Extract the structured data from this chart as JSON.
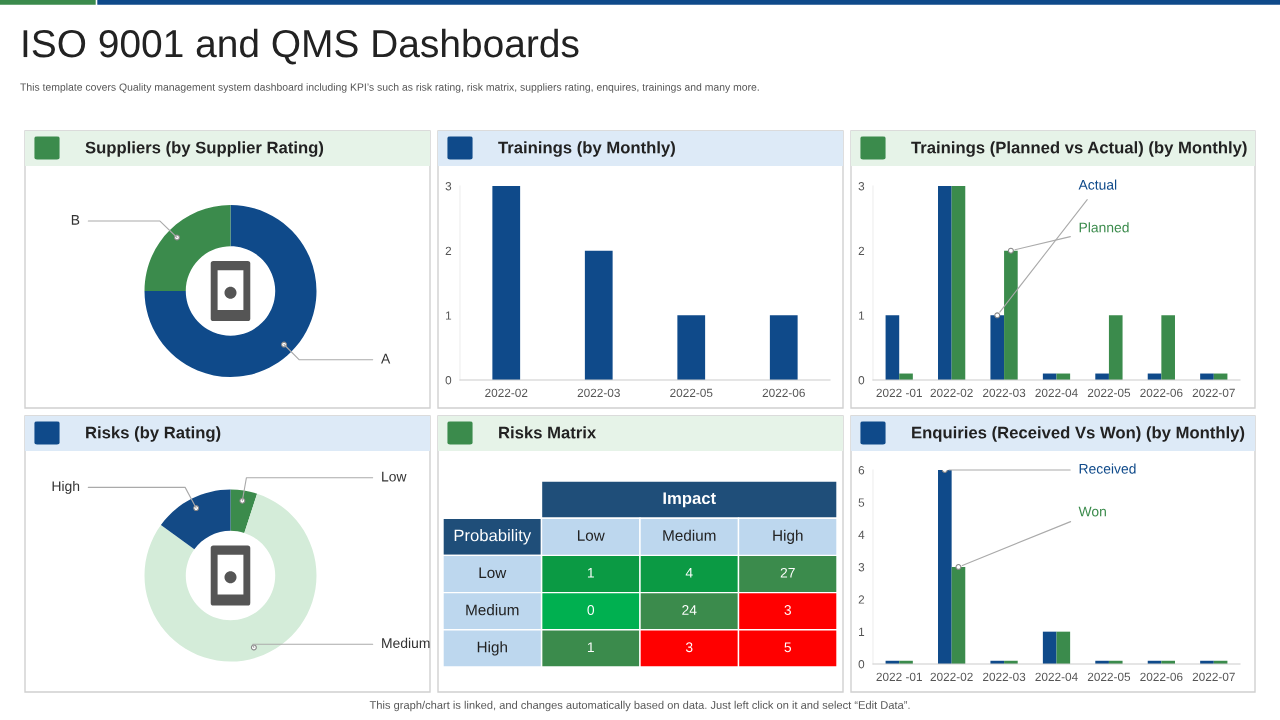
{
  "chart_data": [
    {
      "type": "other",
      "title": "ISO 9001 and QMS Dashboards",
      "subtitle": "This template covers Quality management system dashboard including KPI’s such as risk rating, risk matrix, suppliers rating, enquires, trainings and many more.",
      "annotations": [
        "This graph/chart is linked, and changes automatically based on data. Just left click on it and select “Edit Data”."
      ]
    },
    {
      "type": "donut",
      "title": "Suppliers (by Supplier Rating)",
      "categories": [
        "A",
        "B"
      ],
      "values": [
        75,
        25
      ],
      "colors": [
        "#0f4a8a",
        "#3b8b4c"
      ]
    },
    {
      "type": "bar",
      "title": "Trainings (by Monthly)",
      "categories": [
        "2022-02",
        "2022-03",
        "2022-05",
        "2022-06"
      ],
      "values": [
        3,
        2,
        1,
        1
      ],
      "color": "#0f4a8a",
      "ylim": [
        0,
        3
      ],
      "yticks": [
        0,
        1,
        2,
        3
      ]
    },
    {
      "type": "bar",
      "title": "Trainings (Planned vs Actual) (by Monthly)",
      "categories": [
        "2022 -01",
        "2022-02",
        "2022-03",
        "2022-04",
        "2022-05",
        "2022-06",
        "2022-07"
      ],
      "ylim": [
        0,
        3
      ],
      "yticks": [
        0,
        1,
        2,
        3
      ],
      "series": [
        {
          "name": "Actual",
          "color": "#0f4a8a",
          "values": [
            1,
            3,
            1,
            0.1,
            0.1,
            0.1,
            0.1
          ]
        },
        {
          "name": "Planned",
          "color": "#3b8b4c",
          "values": [
            0.1,
            3,
            2,
            0.1,
            1,
            1,
            0.1
          ]
        }
      ]
    },
    {
      "type": "donut",
      "title": "Risks (by Rating)",
      "categories": [
        "Low",
        "Medium",
        "High"
      ],
      "values": [
        5,
        80,
        15
      ],
      "colors": [
        "#3b8b4c",
        "#d4ecd9",
        "#134a86"
      ]
    },
    {
      "type": "heatmap",
      "title": "Risks Matrix",
      "xlabel": "Impact",
      "ylabel": "Probability",
      "categories": [
        "Low",
        "Medium",
        "High"
      ],
      "y_categories": [
        "Low",
        "Medium",
        "High"
      ],
      "cells": [
        [
          1,
          4,
          27
        ],
        [
          0,
          24,
          3
        ],
        [
          1,
          3,
          5
        ]
      ],
      "colors": [
        [
          "#0b9a44",
          "#0b9a44",
          "#3b8b4c"
        ],
        [
          "#00b050",
          "#3b8b4c",
          "#ff0000"
        ],
        [
          "#3b8b4c",
          "#ff0000",
          "#ff0000"
        ]
      ],
      "data_labels": true
    },
    {
      "type": "bar",
      "title": "Enquiries (Received Vs Won) (by Monthly)",
      "categories": [
        "2022 -01",
        "2022-02",
        "2022-03",
        "2022-04",
        "2022-05",
        "2022-06",
        "2022-07"
      ],
      "ylim": [
        0,
        6
      ],
      "yticks": [
        0,
        1,
        2,
        3,
        4,
        5,
        6
      ],
      "series": [
        {
          "name": "Received",
          "color": "#0f4a8a",
          "values": [
            0.1,
            6,
            0.1,
            1,
            0.1,
            0.1,
            0.1
          ]
        },
        {
          "name": "Won",
          "color": "#3b8b4c",
          "values": [
            0.1,
            3,
            0.1,
            1,
            0.1,
            0.1,
            0.1
          ]
        }
      ]
    }
  ]
}
